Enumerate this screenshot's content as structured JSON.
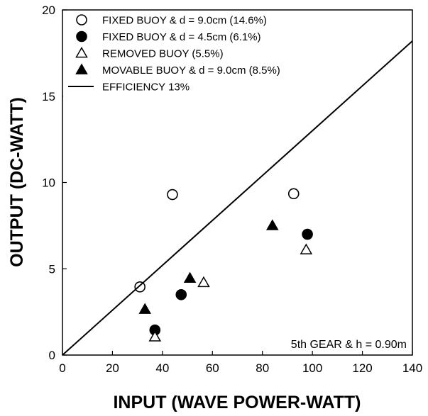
{
  "chart_data": {
    "type": "scatter",
    "xlabel": "INPUT (WAVE POWER-WATT)",
    "ylabel": "OUTPUT (DC-WATT)",
    "xlim": [
      0,
      140
    ],
    "ylim": [
      0,
      20
    ],
    "xticks": [
      "0",
      "20",
      "40",
      "60",
      "80",
      "100",
      "120",
      "140"
    ],
    "yticks": [
      "0",
      "5",
      "10",
      "15",
      "20"
    ],
    "grid": false,
    "legend_position": "top-left",
    "annotation": "5th GEAR & h = 0.90m",
    "series": [
      {
        "name": "FIXED BUOY & d = 9.0cm (14.6%)",
        "marker": "circle-open",
        "points": [
          [
            31,
            3.95
          ],
          [
            44,
            9.3
          ],
          [
            92.5,
            9.35
          ]
        ]
      },
      {
        "name": "FIXED BUOY & d = 4.5cm (6.1%)",
        "marker": "circle-filled",
        "points": [
          [
            37,
            1.45
          ],
          [
            47.5,
            3.5
          ],
          [
            98,
            7.0
          ]
        ]
      },
      {
        "name": "REMOVED BUOY (5.5%)",
        "marker": "triangle-open",
        "points": [
          [
            37,
            1.05
          ],
          [
            56.5,
            4.2
          ],
          [
            97.5,
            6.1
          ]
        ]
      },
      {
        "name": "MOVABLE BUOY & d = 9.0cm (8.5%)",
        "marker": "triangle-filled",
        "points": [
          [
            33,
            2.65
          ],
          [
            51,
            4.45
          ],
          [
            84,
            7.5
          ]
        ]
      },
      {
        "name": "EFFICIENCY 13%",
        "marker": "line",
        "points": [
          [
            0,
            0
          ],
          [
            140,
            18.2
          ]
        ]
      }
    ]
  }
}
